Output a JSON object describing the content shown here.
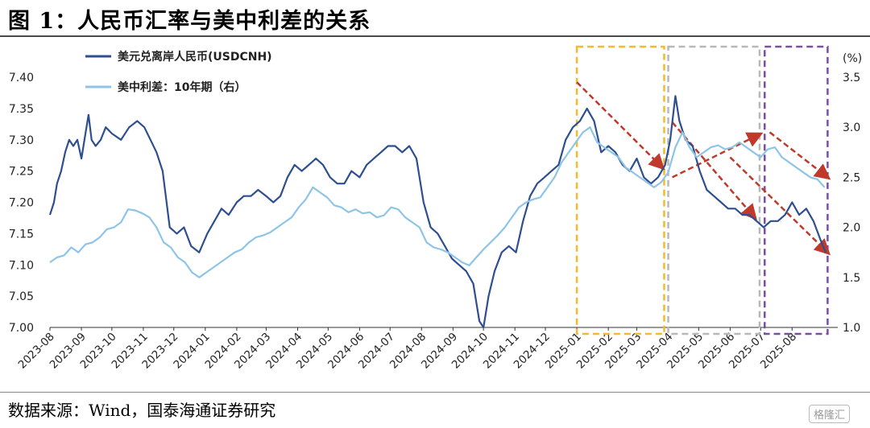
{
  "title": "图 1：人民币汇率与美中利差的关系",
  "source": "数据来源：Wind，国泰海通证券研究",
  "watermark": "格隆汇",
  "chart_data": {
    "type": "line",
    "left_axis": {
      "ticks": [
        "7.00",
        "7.05",
        "7.10",
        "7.15",
        "7.20",
        "7.25",
        "7.30",
        "7.35",
        "7.40"
      ],
      "ylim": [
        7.0,
        7.4
      ]
    },
    "right_axis": {
      "unit": "(%)",
      "ticks": [
        "1.0",
        "1.5",
        "2.0",
        "2.5",
        "3.0",
        "3.5"
      ],
      "ylim": [
        1.0,
        3.5
      ]
    },
    "x_ticks": [
      "2023-08",
      "2023-09",
      "2023-10",
      "2023-11",
      "2023-12",
      "2024-01",
      "2024-02",
      "2024-03",
      "2024-04",
      "2024-05",
      "2024-06",
      "2024-07",
      "2024-08",
      "2024-09",
      "2024-10",
      "2024-11",
      "2024-12",
      "2025-01",
      "2025-02",
      "2025-03",
      "2025-04",
      "2025-05",
      "2025-06",
      "2025-07",
      "2025-08"
    ],
    "x_range": [
      "2023-08-01",
      "2025-09-15"
    ],
    "legend_position": "top-left",
    "series": [
      {
        "name": "美元兑离岸人民币(USDCNH)",
        "axis": "left",
        "color": "#2e4f8f",
        "points": [
          [
            "2023-08-01",
            7.18
          ],
          [
            "2023-08-05",
            7.2
          ],
          [
            "2023-08-08",
            7.23
          ],
          [
            "2023-08-12",
            7.25
          ],
          [
            "2023-08-16",
            7.28
          ],
          [
            "2023-08-20",
            7.3
          ],
          [
            "2023-08-24",
            7.29
          ],
          [
            "2023-08-28",
            7.3
          ],
          [
            "2023-09-01",
            7.27
          ],
          [
            "2023-09-05",
            7.31
          ],
          [
            "2023-09-08",
            7.34
          ],
          [
            "2023-09-11",
            7.3
          ],
          [
            "2023-09-15",
            7.29
          ],
          [
            "2023-09-20",
            7.3
          ],
          [
            "2023-09-25",
            7.32
          ],
          [
            "2023-10-01",
            7.31
          ],
          [
            "2023-10-10",
            7.3
          ],
          [
            "2023-10-18",
            7.32
          ],
          [
            "2023-10-26",
            7.33
          ],
          [
            "2023-11-02",
            7.32
          ],
          [
            "2023-11-08",
            7.3
          ],
          [
            "2023-11-14",
            7.28
          ],
          [
            "2023-11-20",
            7.25
          ],
          [
            "2023-11-27",
            7.16
          ],
          [
            "2023-12-04",
            7.15
          ],
          [
            "2023-12-11",
            7.16
          ],
          [
            "2023-12-18",
            7.13
          ],
          [
            "2023-12-26",
            7.12
          ],
          [
            "2024-01-03",
            7.15
          ],
          [
            "2024-01-10",
            7.17
          ],
          [
            "2024-01-17",
            7.19
          ],
          [
            "2024-01-24",
            7.18
          ],
          [
            "2024-02-01",
            7.2
          ],
          [
            "2024-02-08",
            7.21
          ],
          [
            "2024-02-15",
            7.21
          ],
          [
            "2024-02-22",
            7.22
          ],
          [
            "2024-03-01",
            7.21
          ],
          [
            "2024-03-08",
            7.2
          ],
          [
            "2024-03-15",
            7.21
          ],
          [
            "2024-03-22",
            7.24
          ],
          [
            "2024-03-29",
            7.26
          ],
          [
            "2024-04-05",
            7.25
          ],
          [
            "2024-04-12",
            7.26
          ],
          [
            "2024-04-19",
            7.27
          ],
          [
            "2024-04-26",
            7.26
          ],
          [
            "2024-05-03",
            7.24
          ],
          [
            "2024-05-10",
            7.23
          ],
          [
            "2024-05-17",
            7.23
          ],
          [
            "2024-05-24",
            7.25
          ],
          [
            "2024-06-01",
            7.24
          ],
          [
            "2024-06-08",
            7.26
          ],
          [
            "2024-06-15",
            7.27
          ],
          [
            "2024-06-22",
            7.28
          ],
          [
            "2024-06-29",
            7.29
          ],
          [
            "2024-07-06",
            7.29
          ],
          [
            "2024-07-13",
            7.28
          ],
          [
            "2024-07-20",
            7.29
          ],
          [
            "2024-07-27",
            7.27
          ],
          [
            "2024-08-03",
            7.2
          ],
          [
            "2024-08-10",
            7.16
          ],
          [
            "2024-08-17",
            7.15
          ],
          [
            "2024-08-24",
            7.13
          ],
          [
            "2024-08-31",
            7.11
          ],
          [
            "2024-09-07",
            7.1
          ],
          [
            "2024-09-14",
            7.09
          ],
          [
            "2024-09-21",
            7.07
          ],
          [
            "2024-09-27",
            7.01
          ],
          [
            "2024-10-01",
            7.0
          ],
          [
            "2024-10-06",
            7.05
          ],
          [
            "2024-10-12",
            7.09
          ],
          [
            "2024-10-19",
            7.12
          ],
          [
            "2024-10-26",
            7.13
          ],
          [
            "2024-11-02",
            7.12
          ],
          [
            "2024-11-09",
            7.17
          ],
          [
            "2024-11-16",
            7.21
          ],
          [
            "2024-11-23",
            7.23
          ],
          [
            "2024-11-30",
            7.24
          ],
          [
            "2024-12-07",
            7.25
          ],
          [
            "2024-12-14",
            7.26
          ],
          [
            "2024-12-21",
            7.3
          ],
          [
            "2024-12-28",
            7.32
          ],
          [
            "2025-01-04",
            7.33
          ],
          [
            "2025-01-11",
            7.35
          ],
          [
            "2025-01-18",
            7.33
          ],
          [
            "2025-01-25",
            7.28
          ],
          [
            "2025-02-01",
            7.29
          ],
          [
            "2025-02-08",
            7.28
          ],
          [
            "2025-02-15",
            7.26
          ],
          [
            "2025-02-22",
            7.25
          ],
          [
            "2025-03-01",
            7.27
          ],
          [
            "2025-03-08",
            7.24
          ],
          [
            "2025-03-15",
            7.23
          ],
          [
            "2025-03-22",
            7.24
          ],
          [
            "2025-03-29",
            7.26
          ],
          [
            "2025-04-03",
            7.3
          ],
          [
            "2025-04-08",
            7.37
          ],
          [
            "2025-04-12",
            7.33
          ],
          [
            "2025-04-18",
            7.3
          ],
          [
            "2025-04-25",
            7.29
          ],
          [
            "2025-05-02",
            7.25
          ],
          [
            "2025-05-09",
            7.22
          ],
          [
            "2025-05-16",
            7.21
          ],
          [
            "2025-05-23",
            7.2
          ],
          [
            "2025-05-30",
            7.19
          ],
          [
            "2025-06-06",
            7.19
          ],
          [
            "2025-06-13",
            7.18
          ],
          [
            "2025-06-20",
            7.18
          ],
          [
            "2025-06-27",
            7.17
          ],
          [
            "2025-07-04",
            7.16
          ],
          [
            "2025-07-11",
            7.17
          ],
          [
            "2025-07-18",
            7.17
          ],
          [
            "2025-07-25",
            7.18
          ],
          [
            "2025-08-01",
            7.2
          ],
          [
            "2025-08-08",
            7.18
          ],
          [
            "2025-08-15",
            7.19
          ],
          [
            "2025-08-22",
            7.17
          ],
          [
            "2025-08-29",
            7.14
          ],
          [
            "2025-09-03",
            7.12
          ]
        ]
      },
      {
        "name": "美中利差：10年期（右）",
        "axis": "right",
        "color": "#8ec5e6",
        "points": [
          [
            "2023-08-01",
            1.65
          ],
          [
            "2023-08-08",
            1.7
          ],
          [
            "2023-08-15",
            1.72
          ],
          [
            "2023-08-22",
            1.8
          ],
          [
            "2023-08-29",
            1.75
          ],
          [
            "2023-09-05",
            1.83
          ],
          [
            "2023-09-12",
            1.85
          ],
          [
            "2023-09-19",
            1.9
          ],
          [
            "2023-09-26",
            1.98
          ],
          [
            "2023-10-03",
            2.0
          ],
          [
            "2023-10-10",
            2.05
          ],
          [
            "2023-10-17",
            2.18
          ],
          [
            "2023-10-24",
            2.17
          ],
          [
            "2023-10-31",
            2.14
          ],
          [
            "2023-11-07",
            2.1
          ],
          [
            "2023-11-14",
            2.0
          ],
          [
            "2023-11-21",
            1.85
          ],
          [
            "2023-11-28",
            1.8
          ],
          [
            "2023-12-05",
            1.7
          ],
          [
            "2023-12-12",
            1.65
          ],
          [
            "2023-12-19",
            1.55
          ],
          [
            "2023-12-26",
            1.5
          ],
          [
            "2024-01-02",
            1.55
          ],
          [
            "2024-01-09",
            1.6
          ],
          [
            "2024-01-16",
            1.65
          ],
          [
            "2024-01-23",
            1.7
          ],
          [
            "2024-01-30",
            1.75
          ],
          [
            "2024-02-06",
            1.78
          ],
          [
            "2024-02-13",
            1.85
          ],
          [
            "2024-02-20",
            1.9
          ],
          [
            "2024-02-27",
            1.92
          ],
          [
            "2024-03-05",
            1.95
          ],
          [
            "2024-03-12",
            2.0
          ],
          [
            "2024-03-19",
            2.05
          ],
          [
            "2024-03-26",
            2.1
          ],
          [
            "2024-04-02",
            2.2
          ],
          [
            "2024-04-09",
            2.28
          ],
          [
            "2024-04-16",
            2.4
          ],
          [
            "2024-04-23",
            2.35
          ],
          [
            "2024-04-30",
            2.3
          ],
          [
            "2024-05-07",
            2.22
          ],
          [
            "2024-05-14",
            2.2
          ],
          [
            "2024-05-21",
            2.15
          ],
          [
            "2024-05-28",
            2.18
          ],
          [
            "2024-06-04",
            2.14
          ],
          [
            "2024-06-11",
            2.15
          ],
          [
            "2024-06-18",
            2.1
          ],
          [
            "2024-06-25",
            2.12
          ],
          [
            "2024-07-02",
            2.2
          ],
          [
            "2024-07-09",
            2.18
          ],
          [
            "2024-07-16",
            2.1
          ],
          [
            "2024-07-23",
            2.05
          ],
          [
            "2024-07-30",
            2.0
          ],
          [
            "2024-08-06",
            1.85
          ],
          [
            "2024-08-13",
            1.8
          ],
          [
            "2024-08-20",
            1.78
          ],
          [
            "2024-08-27",
            1.75
          ],
          [
            "2024-09-03",
            1.7
          ],
          [
            "2024-09-10",
            1.65
          ],
          [
            "2024-09-17",
            1.62
          ],
          [
            "2024-09-24",
            1.7
          ],
          [
            "2024-10-01",
            1.78
          ],
          [
            "2024-10-08",
            1.85
          ],
          [
            "2024-10-15",
            1.92
          ],
          [
            "2024-10-22",
            2.0
          ],
          [
            "2024-10-29",
            2.1
          ],
          [
            "2024-11-05",
            2.2
          ],
          [
            "2024-11-12",
            2.25
          ],
          [
            "2024-11-19",
            2.28
          ],
          [
            "2024-11-26",
            2.3
          ],
          [
            "2024-12-03",
            2.4
          ],
          [
            "2024-12-10",
            2.5
          ],
          [
            "2024-12-17",
            2.65
          ],
          [
            "2024-12-24",
            2.75
          ],
          [
            "2024-12-31",
            2.85
          ],
          [
            "2025-01-07",
            2.95
          ],
          [
            "2025-01-14",
            3.0
          ],
          [
            "2025-01-21",
            2.85
          ],
          [
            "2025-01-28",
            2.8
          ],
          [
            "2025-02-04",
            2.75
          ],
          [
            "2025-02-11",
            2.7
          ],
          [
            "2025-02-18",
            2.6
          ],
          [
            "2025-02-25",
            2.55
          ],
          [
            "2025-03-04",
            2.5
          ],
          [
            "2025-03-11",
            2.45
          ],
          [
            "2025-03-18",
            2.4
          ],
          [
            "2025-03-25",
            2.45
          ],
          [
            "2025-04-01",
            2.55
          ],
          [
            "2025-04-08",
            2.8
          ],
          [
            "2025-04-15",
            2.95
          ],
          [
            "2025-04-22",
            2.8
          ],
          [
            "2025-04-29",
            2.7
          ],
          [
            "2025-05-06",
            2.75
          ],
          [
            "2025-05-13",
            2.8
          ],
          [
            "2025-05-20",
            2.82
          ],
          [
            "2025-05-27",
            2.78
          ],
          [
            "2025-06-03",
            2.8
          ],
          [
            "2025-06-10",
            2.85
          ],
          [
            "2025-06-17",
            2.8
          ],
          [
            "2025-06-24",
            2.75
          ],
          [
            "2025-07-01",
            2.7
          ],
          [
            "2025-07-08",
            2.78
          ],
          [
            "2025-07-15",
            2.8
          ],
          [
            "2025-07-22",
            2.7
          ],
          [
            "2025-07-29",
            2.65
          ],
          [
            "2025-08-05",
            2.6
          ],
          [
            "2025-08-12",
            2.55
          ],
          [
            "2025-08-19",
            2.5
          ],
          [
            "2025-08-26",
            2.48
          ],
          [
            "2025-09-02",
            2.4
          ]
        ]
      }
    ],
    "annotations": {
      "boxes": [
        {
          "x0": "2025-01-01",
          "x1": "2025-03-28",
          "color": "#f5b82e"
        },
        {
          "x0": "2025-04-01",
          "x1": "2025-06-30",
          "color": "#b8b8b8"
        },
        {
          "x0": "2025-07-05",
          "x1": "2025-09-05",
          "color": "#7a4fa3"
        }
      ],
      "arrows": [
        {
          "from": [
            "2025-01-01",
            3.45
          ],
          "to": [
            "2025-03-26",
            2.6
          ],
          "axis": "right",
          "color": "#c0392b"
        },
        {
          "from": [
            "2025-04-05",
            2.5
          ],
          "to": [
            "2025-06-30",
            2.93
          ],
          "axis": "right",
          "color": "#c0392b"
        },
        {
          "from": [
            "2025-04-05",
            3.05
          ],
          "to": [
            "2025-06-25",
            2.1
          ],
          "axis": "right",
          "color": "#c0392b"
        },
        {
          "from": [
            "2025-07-10",
            2.95
          ],
          "to": [
            "2025-09-05",
            2.5
          ],
          "axis": "right",
          "color": "#c0392b"
        },
        {
          "from": [
            "2025-06-01",
            2.7
          ],
          "to": [
            "2025-09-05",
            1.75
          ],
          "axis": "right",
          "color": "#c0392b"
        }
      ]
    }
  }
}
